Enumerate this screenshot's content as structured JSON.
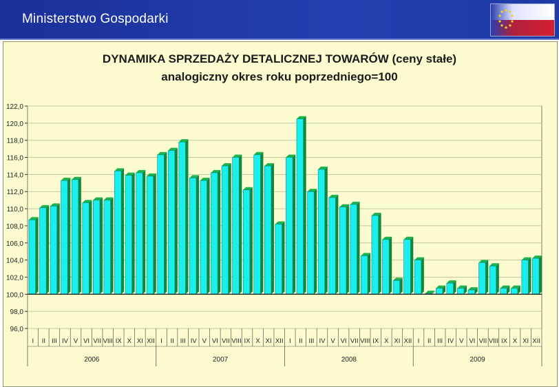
{
  "header": {
    "title": "Ministerstwo Gospodarki",
    "flag_colors": [
      "#1e2f9c",
      "#ffffff",
      "#d42030"
    ]
  },
  "chart_data": {
    "type": "bar",
    "title": "DYNAMIKA SPRZEDAŻY DETALICZNEJ TOWARÓW (ceny stałe)",
    "subtitle": "analogiczny okres roku poprzedniego=100",
    "xlabel": "",
    "ylabel": "",
    "ylim": [
      96.0,
      122.0
    ],
    "baseline": 100.0,
    "yticks": [
      "96,0",
      "98,0",
      "100,0",
      "102,0",
      "104,0",
      "106,0",
      "108,0",
      "110,0",
      "112,0",
      "114,0",
      "116,0",
      "118,0",
      "120,0",
      "122,0"
    ],
    "years": [
      "2006",
      "2007",
      "2008",
      "2009"
    ],
    "months": [
      "I",
      "II",
      "III",
      "IV",
      "V",
      "VI",
      "VII",
      "VIII",
      "IX",
      "X",
      "XI",
      "XII"
    ],
    "values": [
      108.7,
      110.1,
      110.3,
      113.3,
      113.4,
      110.7,
      111.0,
      111.0,
      114.4,
      113.9,
      114.2,
      113.8,
      116.3,
      116.8,
      117.8,
      113.6,
      113.3,
      114.2,
      115.0,
      116.0,
      112.2,
      116.3,
      115.0,
      108.2,
      116.0,
      120.5,
      112.0,
      114.6,
      111.3,
      110.2,
      110.5,
      104.5,
      109.2,
      106.4,
      101.6,
      106.4,
      104.0,
      100.1,
      100.7,
      101.3,
      100.7,
      100.5,
      103.7,
      103.3,
      100.7,
      100.7,
      104.0,
      104.2
    ],
    "grid": true,
    "colors": {
      "bar_front": "#19f0ee",
      "bar_top": "#1bb34e",
      "bar_side": "#0c8a3b",
      "background": "#fdfcd0",
      "gridline": "#bfc8a0"
    }
  }
}
